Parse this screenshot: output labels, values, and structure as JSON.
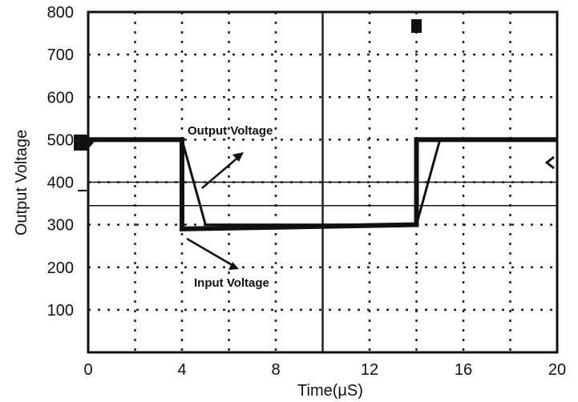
{
  "chart_data": {
    "type": "line",
    "title": "",
    "xlabel": "Time(μS)",
    "ylabel": "Output Voltage",
    "xlim": [
      0,
      20
    ],
    "ylim": [
      0,
      800
    ],
    "x_ticks": [
      "0",
      "4",
      "8",
      "12",
      "16",
      "20"
    ],
    "y_ticks": [
      "100",
      "200",
      "300",
      "400",
      "500",
      "600",
      "700",
      "800"
    ],
    "grid": true,
    "grid_style": "dotted",
    "series": [
      {
        "color": "#111111",
        "x": [
          0,
          4,
          4,
          14,
          14,
          20
        ],
        "y": [
          500,
          500,
          290,
          300,
          500,
          500
        ]
      },
      {
        "color": "#111111",
        "x": [
          0,
          4,
          5,
          14,
          15,
          20
        ],
        "y": [
          500,
          500,
          300,
          300,
          500,
          500
        ]
      }
    ],
    "reference_lines": [
      {
        "axis": "y",
        "value": 400
      },
      {
        "axis": "y",
        "value": 345
      }
    ],
    "annotations": {
      "output": "Output Voltage",
      "input": "Input Voltage"
    }
  }
}
